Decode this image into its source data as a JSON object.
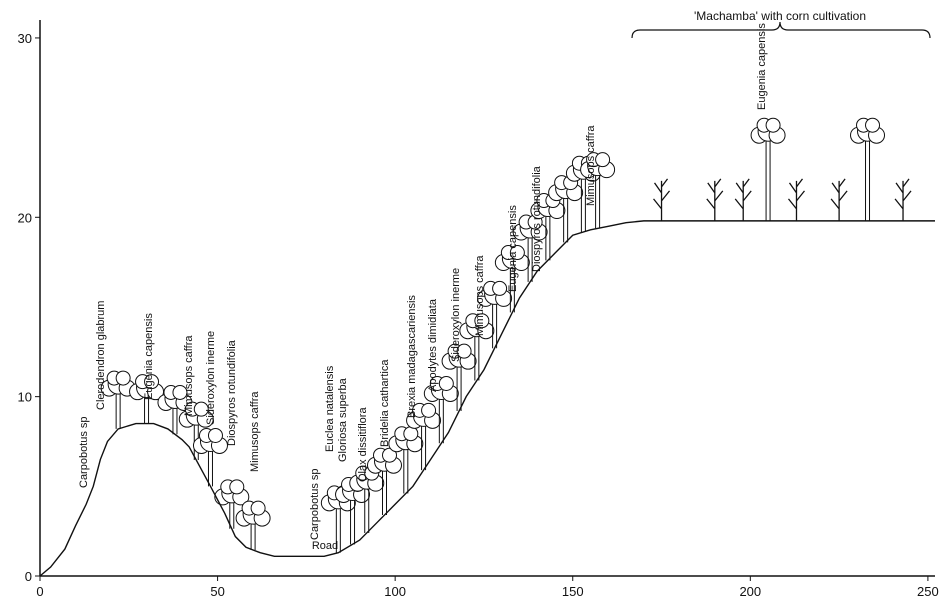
{
  "chart_data": {
    "type": "line",
    "header": "'Machamba' with corn cultivation",
    "road": "Road",
    "xlim": [
      0,
      252
    ],
    "ylim": [
      0,
      31
    ],
    "xticks": [
      0,
      50,
      100,
      150,
      200,
      250
    ],
    "yticks": [
      0,
      10,
      20,
      30
    ],
    "color": "#111111",
    "x": [
      0,
      3,
      7,
      10,
      13,
      15,
      17,
      19,
      22,
      27,
      32,
      36,
      40,
      42,
      48,
      52,
      55,
      58,
      62,
      66,
      80,
      84,
      90,
      95,
      100,
      105,
      110,
      115,
      120,
      125,
      130,
      135,
      140,
      145,
      150,
      155,
      160,
      165,
      170,
      180,
      252
    ],
    "values": [
      0,
      0.5,
      1.5,
      2.8,
      4,
      5,
      6.5,
      7.5,
      8.2,
      8.5,
      8.5,
      8.2,
      7.6,
      7.2,
      5,
      3.5,
      2.2,
      1.6,
      1.3,
      1.1,
      1.1,
      1.3,
      2,
      3,
      4,
      5,
      6.5,
      8,
      10,
      11.5,
      13.5,
      15.5,
      17,
      18,
      19,
      19.3,
      19.5,
      19.7,
      19.8,
      19.8,
      19.8
    ],
    "species": [
      "Carpobotus sp",
      "Clerodendron glabrum",
      "Eugenia capensis",
      "Mimusops caffra",
      "Sideroxylon inerme",
      "Diospyros rotundifolia",
      "Mimusops caffra",
      "Carpobotus sp",
      "Euclea natalensis",
      "Gloriosa superba",
      "Olax dissitiflora",
      "Bridelia cathartica",
      "Brexia madagascariensis",
      "Apodytes dimidiata",
      "Sideroxylon inerme",
      "Mimusops caffra",
      "Eugenia capensis",
      "Diospyros rotundifolia",
      "Mimusops caffra",
      "Eugenia capensis"
    ]
  }
}
